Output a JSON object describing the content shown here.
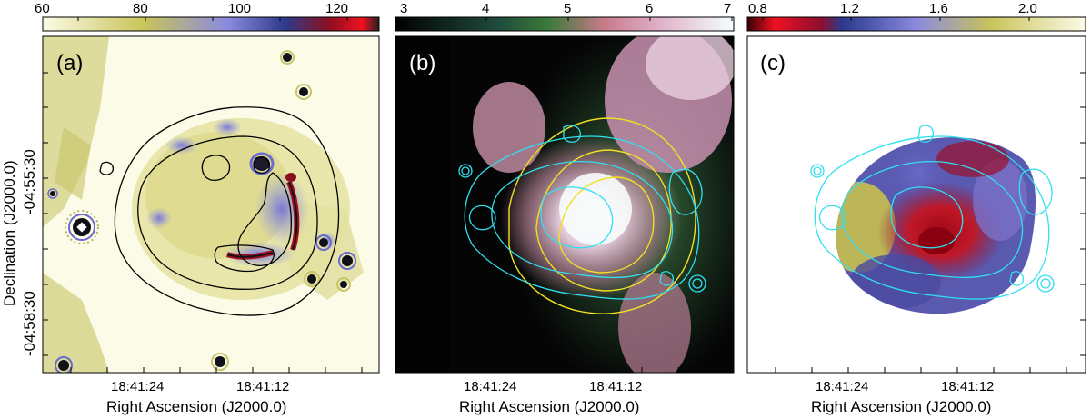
{
  "figure": {
    "y_axis_label": "Declination (J2000.0)",
    "y_ticks": [
      "-04:55:30",
      "-04:58:30"
    ],
    "panels": [
      {
        "label": "(a)",
        "colorbar_ticks": [
          "60",
          "80",
          "100",
          "120"
        ],
        "x_ticks": [
          "18:41:24",
          "18:41:12"
        ],
        "x_axis_label": "Right Ascension (J2000.0)"
      },
      {
        "label": "(b)",
        "colorbar_ticks": [
          "3",
          "4",
          "5",
          "6",
          "7"
        ],
        "x_ticks": [
          "18:41:24",
          "18:41:12"
        ],
        "x_axis_label": "Right Ascension (J2000.0)"
      },
      {
        "label": "(c)",
        "colorbar_ticks": [
          "0.8",
          "1.2",
          "1.6",
          "2.0"
        ],
        "x_ticks": [
          "18:41:24",
          "18:41:12"
        ],
        "x_axis_label": "Right Ascension (J2000.0)"
      }
    ]
  }
}
